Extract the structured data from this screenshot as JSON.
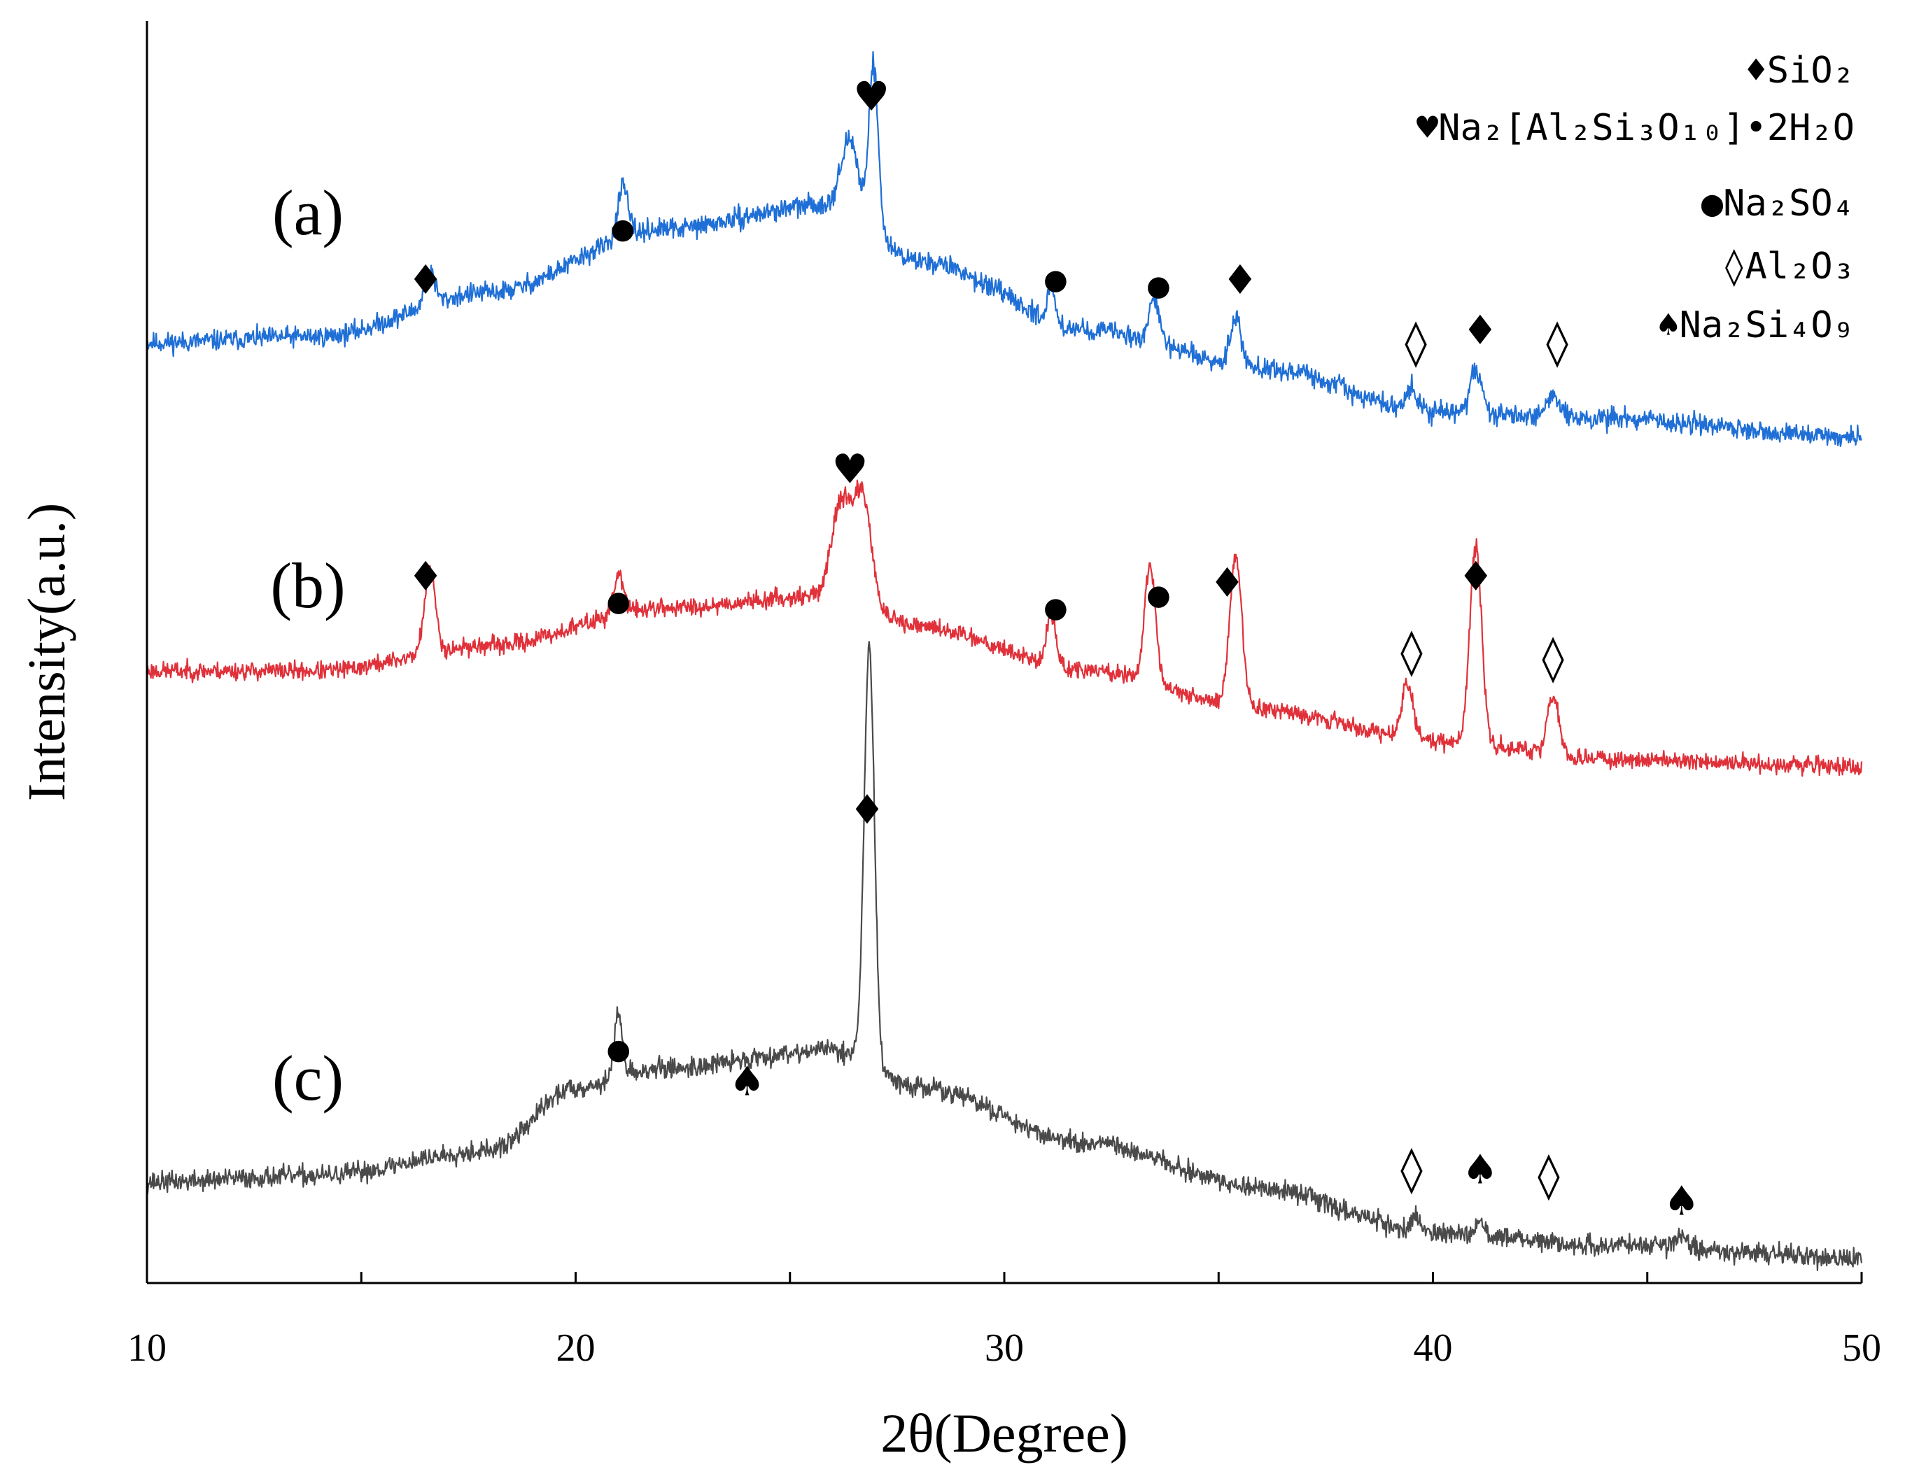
{
  "chart_data": {
    "type": "line",
    "title": "",
    "xlabel": "2θ(Degree)",
    "ylabel": "Intensity(a.u.)",
    "xlim": [
      10,
      50
    ],
    "xticks": [
      10,
      20,
      30,
      40,
      50
    ],
    "ylim": [
      0,
      10
    ],
    "grid": false,
    "legend_position": "top-right",
    "legend": [
      {
        "symbol": "filled-diamond",
        "glyph": "♦",
        "label": "SiO₂"
      },
      {
        "symbol": "heart",
        "glyph": "♥",
        "label": "Na₂[Al₂Si₃O₁₀]•2H₂O"
      },
      {
        "symbol": "filled-circle",
        "glyph": "●",
        "label": "Na₂SO₄"
      },
      {
        "symbol": "open-diamond",
        "glyph": "◊",
        "label": "Al₂O₃"
      },
      {
        "symbol": "spade",
        "glyph": "♠",
        "label": "Na₂Si₄O₉"
      }
    ],
    "series": [
      {
        "name": "(a)",
        "color": "#1f6fd6",
        "seed": 11,
        "noise": 0.08,
        "baseline_points": [
          [
            10,
            7.45
          ],
          [
            14,
            7.5
          ],
          [
            18,
            7.85
          ],
          [
            22,
            8.35
          ],
          [
            26,
            8.55
          ],
          [
            28,
            8.1
          ],
          [
            32,
            7.55
          ],
          [
            36,
            7.25
          ],
          [
            40,
            6.9
          ],
          [
            44,
            6.85
          ],
          [
            50,
            6.7
          ]
        ],
        "peaks": [
          {
            "x": 16.6,
            "height": 0.25,
            "width": 0.12
          },
          {
            "x": 21.1,
            "height": 0.4,
            "width": 0.12
          },
          {
            "x": 26.4,
            "height": 0.55,
            "width": 0.2
          },
          {
            "x": 26.95,
            "height": 1.3,
            "width": 0.11
          },
          {
            "x": 31.1,
            "height": 0.25,
            "width": 0.1
          },
          {
            "x": 33.5,
            "height": 0.35,
            "width": 0.12
          },
          {
            "x": 35.4,
            "height": 0.4,
            "width": 0.13
          },
          {
            "x": 39.5,
            "height": 0.18,
            "width": 0.13
          },
          {
            "x": 41.0,
            "height": 0.35,
            "width": 0.13
          },
          {
            "x": 42.8,
            "height": 0.16,
            "width": 0.18
          }
        ]
      },
      {
        "name": "(b)",
        "color": "#e0313a",
        "seed": 23,
        "noise": 0.07,
        "baseline_points": [
          [
            10,
            4.85
          ],
          [
            14,
            4.85
          ],
          [
            18,
            5.05
          ],
          [
            22,
            5.35
          ],
          [
            26,
            5.45
          ],
          [
            28,
            5.2
          ],
          [
            32,
            4.85
          ],
          [
            36,
            4.55
          ],
          [
            40,
            4.3
          ],
          [
            44,
            4.15
          ],
          [
            50,
            4.1
          ]
        ],
        "peaks": [
          {
            "x": 16.6,
            "height": 0.65,
            "width": 0.13
          },
          {
            "x": 21.0,
            "height": 0.3,
            "width": 0.12
          },
          {
            "x": 26.2,
            "height": 0.75,
            "width": 0.22
          },
          {
            "x": 26.7,
            "height": 0.85,
            "width": 0.2
          },
          {
            "x": 31.1,
            "height": 0.4,
            "width": 0.11
          },
          {
            "x": 33.4,
            "height": 0.9,
            "width": 0.13
          },
          {
            "x": 35.4,
            "height": 1.2,
            "width": 0.14
          },
          {
            "x": 39.4,
            "height": 0.45,
            "width": 0.13
          },
          {
            "x": 41.0,
            "height": 1.55,
            "width": 0.14
          },
          {
            "x": 42.8,
            "height": 0.45,
            "width": 0.14
          }
        ]
      },
      {
        "name": "(c)",
        "color": "#4a4a4a",
        "seed": 37,
        "noise": 0.08,
        "baseline_points": [
          [
            10,
            0.8
          ],
          [
            14,
            0.85
          ],
          [
            18,
            1.05
          ],
          [
            20,
            1.55
          ],
          [
            22,
            1.7
          ],
          [
            26,
            1.85
          ],
          [
            28,
            1.55
          ],
          [
            32,
            1.1
          ],
          [
            36,
            0.75
          ],
          [
            40,
            0.4
          ],
          [
            44,
            0.3
          ],
          [
            50,
            0.2
          ]
        ],
        "peaks": [
          {
            "x": 21.0,
            "height": 0.5,
            "width": 0.1
          },
          {
            "x": 26.85,
            "height": 3.3,
            "width": 0.12
          },
          {
            "x": 39.6,
            "height": 0.12,
            "width": 0.1
          },
          {
            "x": 41.1,
            "height": 0.1,
            "width": 0.1
          },
          {
            "x": 45.8,
            "height": 0.08,
            "width": 0.15
          }
        ]
      }
    ],
    "series_labels": [
      "(a)",
      "(b)",
      "(c)"
    ],
    "annotations": [
      {
        "series": "(a)",
        "x": 16.5,
        "y": 7.95,
        "glyph": "♦"
      },
      {
        "series": "(a)",
        "x": 21.1,
        "y": 8.35,
        "glyph": "●"
      },
      {
        "series": "(a)",
        "x": 26.9,
        "y": 9.4,
        "glyph": "♥"
      },
      {
        "series": "(a)",
        "x": 31.2,
        "y": 7.95,
        "glyph": "●"
      },
      {
        "series": "(a)",
        "x": 33.6,
        "y": 7.9,
        "glyph": "●"
      },
      {
        "series": "(a)",
        "x": 35.5,
        "y": 7.95,
        "glyph": "♦"
      },
      {
        "series": "(a)",
        "x": 39.6,
        "y": 7.45,
        "glyph": "◊"
      },
      {
        "series": "(a)",
        "x": 41.1,
        "y": 7.55,
        "glyph": "♦"
      },
      {
        "series": "(a)",
        "x": 42.9,
        "y": 7.45,
        "glyph": "◊"
      },
      {
        "series": "(b)",
        "x": 16.5,
        "y": 5.6,
        "glyph": "♦"
      },
      {
        "series": "(b)",
        "x": 21.0,
        "y": 5.4,
        "glyph": "●"
      },
      {
        "series": "(b)",
        "x": 26.4,
        "y": 6.45,
        "glyph": "♥"
      },
      {
        "series": "(b)",
        "x": 31.2,
        "y": 5.35,
        "glyph": "●"
      },
      {
        "series": "(b)",
        "x": 33.6,
        "y": 5.45,
        "glyph": "●"
      },
      {
        "series": "(b)",
        "x": 35.2,
        "y": 5.55,
        "glyph": "♦"
      },
      {
        "series": "(b)",
        "x": 39.5,
        "y": 5.0,
        "glyph": "◊"
      },
      {
        "series": "(b)",
        "x": 41.0,
        "y": 5.6,
        "glyph": "♦"
      },
      {
        "series": "(b)",
        "x": 42.8,
        "y": 4.95,
        "glyph": "◊"
      },
      {
        "series": "(c)",
        "x": 21.0,
        "y": 1.85,
        "glyph": "●"
      },
      {
        "series": "(c)",
        "x": 24.0,
        "y": 1.6,
        "glyph": "♠"
      },
      {
        "series": "(c)",
        "x": 26.8,
        "y": 3.75,
        "glyph": "♦"
      },
      {
        "series": "(c)",
        "x": 39.5,
        "y": 0.9,
        "glyph": "◊"
      },
      {
        "series": "(c)",
        "x": 41.1,
        "y": 0.9,
        "glyph": "♠"
      },
      {
        "series": "(c)",
        "x": 42.7,
        "y": 0.85,
        "glyph": "◊"
      },
      {
        "series": "(c)",
        "x": 45.8,
        "y": 0.65,
        "glyph": "♠"
      }
    ]
  }
}
